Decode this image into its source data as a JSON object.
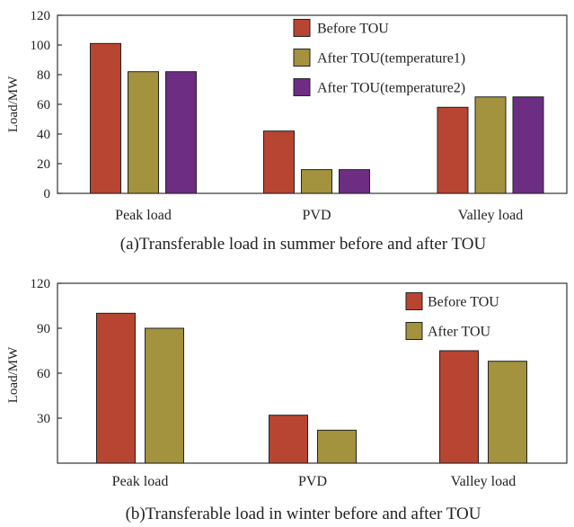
{
  "chart_data": [
    {
      "type": "bar",
      "title": "(a)Transferable load in summer before and after TOU",
      "xlabel": "",
      "ylabel": "Load/MW",
      "ylim": [
        0,
        120
      ],
      "yticks": [
        0,
        20,
        40,
        60,
        80,
        100,
        120
      ],
      "categories": [
        "Peak load",
        "PVD",
        "Valley load"
      ],
      "legend_position": "top-right",
      "series": [
        {
          "name": "Before TOU",
          "color": "#b84432",
          "values": [
            101,
            42,
            58
          ]
        },
        {
          "name": "After TOU(temperature1)",
          "color": "#a3923e",
          "values": [
            82,
            16,
            65
          ]
        },
        {
          "name": "After TOU(temperature2)",
          "color": "#6d2d83",
          "values": [
            82,
            16,
            65
          ]
        }
      ]
    },
    {
      "type": "bar",
      "title": "(b)Transferable load in winter before and after TOU",
      "xlabel": "",
      "ylabel": "Load/MW",
      "ylim": [
        0,
        120
      ],
      "yticks": [
        30,
        60,
        90,
        120
      ],
      "categories": [
        "Peak load",
        "PVD",
        "Valley load"
      ],
      "legend_position": "top-right",
      "series": [
        {
          "name": "Before TOU",
          "color": "#b84432",
          "values": [
            100,
            32,
            75
          ]
        },
        {
          "name": "After TOU",
          "color": "#a3923e",
          "values": [
            90,
            22,
            68
          ]
        }
      ]
    }
  ]
}
